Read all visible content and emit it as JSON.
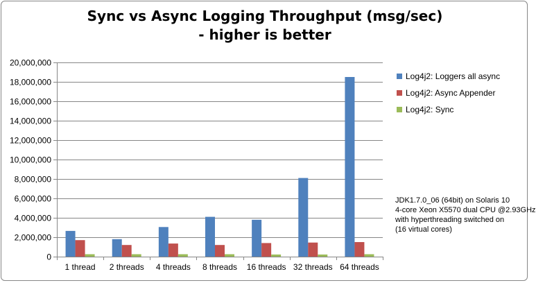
{
  "chart_data": {
    "type": "bar",
    "title_lines": [
      "Sync vs Async Logging Throughput (msg/sec)",
      "- higher is better"
    ],
    "xlabel": "",
    "ylabel": "",
    "categories": [
      "1 thread",
      "2 threads",
      "4 threads",
      "8 threads",
      "16 threads",
      "32 threads",
      "64 threads"
    ],
    "series": [
      {
        "name": "Log4j2: Loggers all async",
        "color": "#4F81BD",
        "values": [
          2650000,
          1800000,
          3050000,
          4100000,
          3800000,
          8100000,
          18500000
        ]
      },
      {
        "name": "Log4j2: Async Appender",
        "color": "#C0504D",
        "values": [
          1700000,
          1200000,
          1350000,
          1200000,
          1400000,
          1450000,
          1500000
        ]
      },
      {
        "name": "Log4j2: Sync",
        "color": "#9BBB59",
        "values": [
          250000,
          250000,
          250000,
          250000,
          220000,
          220000,
          250000
        ]
      }
    ],
    "ylim": [
      0,
      20000000
    ],
    "yticks": [
      0,
      2000000,
      4000000,
      6000000,
      8000000,
      10000000,
      12000000,
      14000000,
      16000000,
      18000000,
      20000000
    ],
    "ytick_labels": [
      "0",
      "2,000,000",
      "4,000,000",
      "6,000,000",
      "8,000,000",
      "10,000,000",
      "12,000,000",
      "14,000,000",
      "16,000,000",
      "18,000,000",
      "20,000,000"
    ],
    "grid": true,
    "legend_position": "right"
  },
  "note": [
    "JDK1.7.0_06 (64bit) on Solaris 10",
    "4-core Xeon X5570 dual CPU @2.93GHz",
    "with hyperthreading switched on",
    "(16 virtual cores)"
  ]
}
